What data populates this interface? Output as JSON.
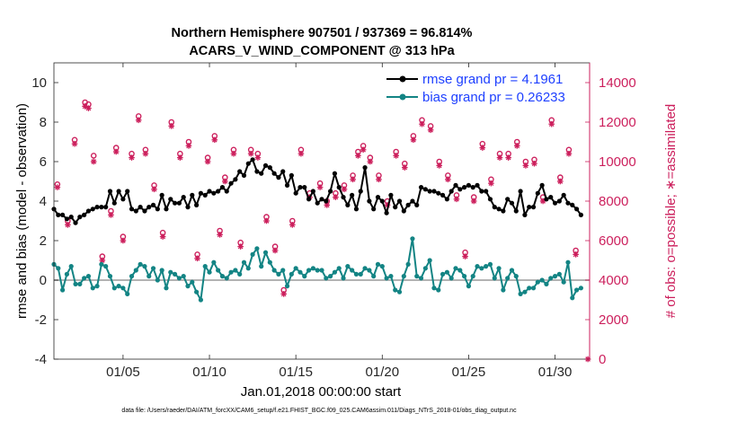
{
  "chart_data": {
    "type": "line",
    "title": "Northern Hemisphere 907501 / 937369 = 96.814%",
    "subtitle": "ACARS_V_WIND_COMPONENT @ 313 hPa",
    "xlabel": "Jan.01,2018 00:00:00 start",
    "ylabel_left": "rmse and bias (model - observation)",
    "ylabel_right": "# of obs: o=possible; ∗=assimilated",
    "footnote": "data file: /Users/raeder/DAI/ATM_forcXX/CAM6_setup/f.e21.FHIST_BGC.f09_025.CAM6assim.011/Diags_NTrS_2018-01/obs_diag_output.nc",
    "xlim": [
      1,
      32
    ],
    "ylim_left": [
      -4,
      11
    ],
    "ylim_right": [
      0,
      15000
    ],
    "x_ticks": [
      5,
      10,
      15,
      20,
      25,
      30
    ],
    "x_tick_labels": [
      "01/05",
      "01/10",
      "01/15",
      "01/20",
      "01/25",
      "01/30"
    ],
    "y_left_ticks": [
      "-4",
      "-2",
      "0",
      "2",
      "4",
      "6",
      "8",
      "10"
    ],
    "y_right_ticks": [
      "0",
      "2000",
      "4000",
      "6000",
      "8000",
      "10000",
      "12000",
      "14000"
    ],
    "colors": {
      "rmse": "#000000",
      "bias": "#138484",
      "obs": "#cc1f5c",
      "legend_text": "#1d3fff",
      "zero_line": "#b3b3b3"
    },
    "x": [
      1.0,
      1.25,
      1.5,
      1.75,
      2.0,
      2.25,
      2.5,
      2.75,
      3.0,
      3.25,
      3.5,
      3.75,
      4.0,
      4.25,
      4.5,
      4.75,
      5.0,
      5.25,
      5.5,
      5.75,
      6.0,
      6.25,
      6.5,
      6.75,
      7.0,
      7.25,
      7.5,
      7.75,
      8.0,
      8.25,
      8.5,
      8.75,
      9.0,
      9.25,
      9.5,
      9.75,
      10.0,
      10.25,
      10.5,
      10.75,
      11.0,
      11.25,
      11.5,
      11.75,
      12.0,
      12.25,
      12.5,
      12.75,
      13.0,
      13.25,
      13.5,
      13.75,
      14.0,
      14.25,
      14.5,
      14.75,
      15.0,
      15.25,
      15.5,
      15.75,
      16.0,
      16.25,
      16.5,
      16.75,
      17.0,
      17.25,
      17.5,
      17.75,
      18.0,
      18.25,
      18.5,
      18.75,
      19.0,
      19.25,
      19.5,
      19.75,
      20.0,
      20.25,
      20.5,
      20.75,
      21.0,
      21.25,
      21.5,
      21.75,
      22.0,
      22.25,
      22.5,
      22.75,
      23.0,
      23.25,
      23.5,
      23.75,
      24.0,
      24.25,
      24.5,
      24.75,
      25.0,
      25.25,
      25.5,
      25.75,
      26.0,
      26.25,
      26.5,
      26.75,
      27.0,
      27.25,
      27.5,
      27.75,
      28.0,
      28.25,
      28.5,
      28.75,
      29.0,
      29.25,
      29.5,
      29.75,
      30.0,
      30.25,
      30.5,
      30.75,
      31.0,
      31.25,
      31.5
    ],
    "series": [
      {
        "name": "rmse",
        "legend": "rmse grand pr = 4.1961",
        "values": [
          3.6,
          3.3,
          3.3,
          3.1,
          3.2,
          2.9,
          3.2,
          3.3,
          3.5,
          3.6,
          3.7,
          3.7,
          3.7,
          4.5,
          3.9,
          4.5,
          4.1,
          4.5,
          3.6,
          3.5,
          3.7,
          3.5,
          3.7,
          3.8,
          3.6,
          4.3,
          3.6,
          4.1,
          3.9,
          3.9,
          4.2,
          3.7,
          4.3,
          3.8,
          4.4,
          4.3,
          4.5,
          4.4,
          4.5,
          4.7,
          4.5,
          4.9,
          5.1,
          5.5,
          5.3,
          5.9,
          6.1,
          5.5,
          5.4,
          5.8,
          5.7,
          5.4,
          5.2,
          5.5,
          4.8,
          5.3,
          4.4,
          4.7,
          4.7,
          4.1,
          4.5,
          3.9,
          4.1,
          4.0,
          4.5,
          5.4,
          4.7,
          4.2,
          3.8,
          4.3,
          3.6,
          4.5,
          5.7,
          4.0,
          3.6,
          4.2,
          4.0,
          3.4,
          4.3,
          3.7,
          4.0,
          3.5,
          3.8,
          4.0,
          3.8,
          4.7,
          4.6,
          4.5,
          4.5,
          4.4,
          4.3,
          4.1,
          4.5,
          4.8,
          4.6,
          4.7,
          4.8,
          4.7,
          4.8,
          4.5,
          4.5,
          4.1,
          3.7,
          3.6,
          3.5,
          4.1,
          3.9,
          3.5,
          4.5,
          3.3,
          3.7,
          3.7,
          4.4,
          4.8,
          4.1,
          4.2,
          3.9,
          4.0,
          4.3,
          3.9,
          3.8,
          3.6,
          3.3
        ],
        "marker": "filled-circle"
      },
      {
        "name": "bias",
        "legend": "bias grand pr = 0.26233",
        "values": [
          0.8,
          0.6,
          -0.5,
          0.3,
          0.7,
          -0.2,
          -0.2,
          0.1,
          0.2,
          -0.4,
          -0.3,
          0.8,
          0.7,
          0.2,
          -0.4,
          -0.3,
          -0.4,
          -0.7,
          0.2,
          0.5,
          0.8,
          0.7,
          0.2,
          0.6,
          0.0,
          0.5,
          -0.4,
          0.4,
          0.3,
          0.1,
          0.2,
          -0.3,
          -0.1,
          -0.6,
          -1.0,
          0.7,
          0.4,
          0.9,
          0.5,
          0.2,
          0.1,
          0.4,
          0.5,
          0.3,
          0.9,
          0.6,
          1.3,
          1.6,
          0.7,
          1.4,
          0.9,
          0.5,
          0.3,
          0.5,
          -0.3,
          0.3,
          0.6,
          0.4,
          0.2,
          0.5,
          0.6,
          0.5,
          0.5,
          0.1,
          0.2,
          0.4,
          0.6,
          0.1,
          0.7,
          0.5,
          0.3,
          0.3,
          0.6,
          0.5,
          0.2,
          0.8,
          0.7,
          0.1,
          0.2,
          -0.5,
          -0.6,
          0.2,
          0.8,
          2.1,
          0.2,
          0.1,
          0.6,
          1.0,
          -0.4,
          -0.5,
          0.3,
          0.4,
          0.1,
          0.6,
          0.5,
          0.2,
          -0.3,
          0.2,
          0.7,
          0.6,
          0.7,
          0.8,
          0.1,
          0.6,
          -0.5,
          0.1,
          0.5,
          0.2,
          -0.7,
          -0.6,
          -0.4,
          -0.4,
          -0.1,
          0.0,
          -0.2,
          0.1,
          0.2,
          0.3,
          -0.1,
          0.9,
          -0.9,
          -0.5,
          -0.4
        ],
        "marker": "filled-circle"
      }
    ],
    "obs_possible": {
      "marker": "o",
      "x": [
        1.2,
        1.8,
        2.2,
        2.8,
        3.0,
        3.3,
        3.8,
        4.3,
        4.6,
        5.0,
        5.5,
        5.9,
        6.3,
        6.8,
        7.3,
        7.8,
        8.3,
        8.8,
        9.3,
        9.9,
        10.3,
        10.6,
        10.9,
        11.4,
        11.8,
        12.4,
        12.8,
        13.3,
        13.8,
        14.3,
        14.8,
        15.3,
        15.8,
        16.4,
        16.8,
        17.3,
        17.8,
        18.3,
        18.6,
        18.9,
        19.3,
        19.8,
        20.3,
        20.8,
        21.3,
        21.8,
        22.3,
        22.8,
        23.3,
        23.8,
        24.3,
        24.8,
        25.3,
        25.8,
        26.3,
        26.8,
        27.3,
        27.8,
        28.3,
        28.8,
        29.3,
        29.8,
        30.3,
        30.8,
        31.2
      ],
      "values": [
        8850,
        7000,
        11100,
        13000,
        12900,
        10300,
        5200,
        7500,
        10700,
        6200,
        10400,
        12300,
        10600,
        8800,
        6400,
        12000,
        10400,
        11000,
        5300,
        10200,
        11300,
        6500,
        9200,
        10600,
        5900,
        10600,
        10400,
        7200,
        5700,
        3500,
        7000,
        10600,
        8400,
        8900,
        8000,
        8400,
        8800,
        9300,
        10500,
        10800,
        10200,
        9300,
        8000,
        10500,
        9900,
        11300,
        12100,
        11800,
        10000,
        9300,
        8300,
        5400,
        8200,
        10900,
        9100,
        10400,
        10400,
        11000,
        10000,
        10100,
        8200,
        12100,
        9200,
        10600,
        5500
      ],
      "note": "also assimilated counts near 0 at x≈32"
    },
    "obs_assimilated": {
      "marker": "*",
      "x": [
        1.2,
        1.8,
        2.2,
        2.8,
        3.0,
        3.3,
        3.8,
        4.3,
        4.6,
        5.0,
        5.5,
        5.9,
        6.3,
        6.8,
        7.3,
        7.8,
        8.3,
        8.8,
        9.3,
        9.9,
        10.3,
        10.6,
        10.9,
        11.4,
        11.8,
        12.4,
        12.8,
        13.3,
        13.8,
        14.3,
        14.8,
        15.3,
        15.8,
        16.4,
        16.8,
        17.3,
        17.8,
        18.3,
        18.6,
        18.9,
        19.3,
        19.8,
        20.3,
        20.8,
        21.3,
        21.8,
        22.3,
        22.8,
        23.3,
        23.8,
        24.3,
        24.8,
        25.3,
        25.8,
        26.3,
        26.8,
        27.3,
        27.8,
        28.3,
        28.8,
        29.3,
        29.8,
        30.3,
        30.8,
        31.2,
        31.9
      ],
      "values": [
        8700,
        6800,
        10900,
        12800,
        12700,
        10000,
        5000,
        7300,
        10500,
        6000,
        10200,
        12100,
        10400,
        8600,
        6200,
        11800,
        10200,
        10800,
        5100,
        10000,
        11100,
        6300,
        9000,
        10400,
        5700,
        10400,
        10200,
        7000,
        5500,
        3300,
        6800,
        10400,
        8200,
        8700,
        7800,
        8200,
        8600,
        9100,
        10300,
        10600,
        10000,
        9100,
        7800,
        10300,
        9700,
        11100,
        11900,
        11600,
        9800,
        9100,
        8100,
        5200,
        8000,
        10700,
        8900,
        10200,
        10200,
        10800,
        9800,
        9900,
        8000,
        11900,
        9000,
        10400,
        5300,
        0
      ]
    }
  }
}
